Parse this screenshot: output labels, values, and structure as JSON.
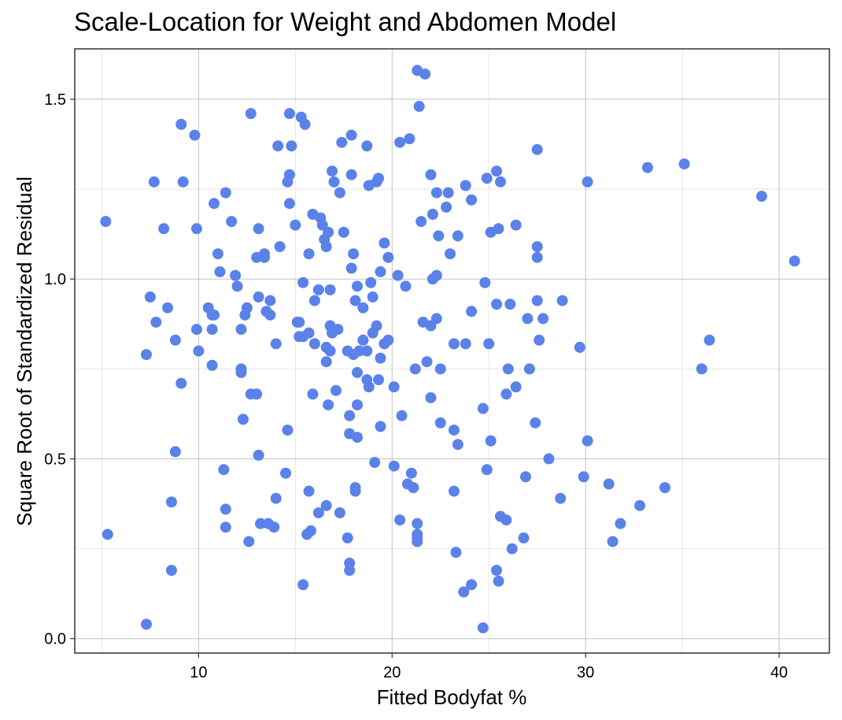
{
  "chart_data": {
    "type": "scatter",
    "title": "Scale-Location for Weight and Abdomen Model",
    "xlabel": "Fitted Bodyfat %",
    "ylabel": "Square Root of Standardized Residual",
    "xlim": [
      3.6,
      42.6
    ],
    "ylim": [
      -0.04,
      1.64
    ],
    "xticks": [
      10,
      20,
      30,
      40
    ],
    "xtick_labels": [
      "10",
      "20",
      "30",
      "40"
    ],
    "yticks": [
      0.0,
      0.5,
      1.0,
      1.5
    ],
    "ytick_labels": [
      "0.0",
      "0.5",
      "1.0",
      "1.5"
    ],
    "grid": true,
    "point_color": "#5b82e8",
    "points": [
      [
        5.2,
        1.16
      ],
      [
        5.3,
        0.29
      ],
      [
        7.3,
        0.04
      ],
      [
        7.3,
        0.79
      ],
      [
        7.5,
        0.95
      ],
      [
        7.7,
        1.27
      ],
      [
        7.8,
        0.88
      ],
      [
        8.2,
        1.14
      ],
      [
        8.4,
        0.92
      ],
      [
        8.6,
        0.38
      ],
      [
        8.6,
        0.19
      ],
      [
        8.8,
        0.52
      ],
      [
        8.8,
        0.83
      ],
      [
        9.1,
        1.43
      ],
      [
        9.2,
        1.27
      ],
      [
        9.1,
        0.71
      ],
      [
        9.8,
        1.4
      ],
      [
        9.9,
        1.14
      ],
      [
        9.9,
        0.86
      ],
      [
        10.0,
        0.8
      ],
      [
        10.5,
        0.92
      ],
      [
        10.7,
        0.9
      ],
      [
        10.8,
        0.9
      ],
      [
        10.7,
        0.86
      ],
      [
        10.7,
        0.76
      ],
      [
        10.8,
        1.21
      ],
      [
        11.0,
        1.07
      ],
      [
        11.1,
        1.02
      ],
      [
        11.4,
        1.24
      ],
      [
        11.3,
        0.47
      ],
      [
        11.4,
        0.36
      ],
      [
        11.4,
        0.31
      ],
      [
        11.7,
        1.16
      ],
      [
        11.9,
        1.01
      ],
      [
        12.0,
        0.98
      ],
      [
        12.2,
        0.86
      ],
      [
        12.2,
        0.75
      ],
      [
        12.2,
        0.74
      ],
      [
        12.3,
        0.61
      ],
      [
        12.4,
        0.9
      ],
      [
        12.5,
        0.92
      ],
      [
        12.6,
        0.27
      ],
      [
        12.7,
        1.46
      ],
      [
        12.7,
        0.68
      ],
      [
        13.0,
        1.06
      ],
      [
        13.0,
        0.68
      ],
      [
        13.1,
        0.95
      ],
      [
        13.1,
        1.14
      ],
      [
        13.1,
        0.51
      ],
      [
        13.2,
        0.32
      ],
      [
        13.4,
        1.06
      ],
      [
        13.4,
        1.07
      ],
      [
        13.5,
        0.91
      ],
      [
        13.6,
        0.32
      ],
      [
        13.7,
        0.94
      ],
      [
        13.7,
        0.9
      ],
      [
        13.9,
        0.31
      ],
      [
        14.0,
        0.39
      ],
      [
        14.0,
        0.82
      ],
      [
        14.1,
        1.37
      ],
      [
        14.2,
        1.09
      ],
      [
        14.5,
        0.46
      ],
      [
        14.6,
        1.27
      ],
      [
        14.6,
        0.58
      ],
      [
        14.7,
        1.29
      ],
      [
        14.7,
        1.21
      ],
      [
        14.7,
        1.46
      ],
      [
        14.8,
        1.37
      ],
      [
        15.0,
        1.15
      ],
      [
        15.1,
        0.88
      ],
      [
        15.2,
        0.88
      ],
      [
        15.2,
        0.84
      ],
      [
        15.3,
        1.45
      ],
      [
        15.4,
        0.15
      ],
      [
        15.4,
        0.84
      ],
      [
        15.4,
        0.99
      ],
      [
        15.5,
        1.43
      ],
      [
        15.6,
        0.29
      ],
      [
        15.7,
        0.85
      ],
      [
        15.7,
        0.41
      ],
      [
        15.7,
        1.07
      ],
      [
        15.8,
        0.3
      ],
      [
        15.9,
        1.18
      ],
      [
        15.9,
        0.68
      ],
      [
        16.0,
        0.94
      ],
      [
        16.0,
        0.82
      ],
      [
        16.2,
        0.35
      ],
      [
        16.2,
        0.97
      ],
      [
        16.3,
        1.17
      ],
      [
        16.4,
        1.15
      ],
      [
        16.5,
        1.11
      ],
      [
        16.6,
        0.81
      ],
      [
        16.6,
        0.37
      ],
      [
        16.6,
        0.77
      ],
      [
        16.6,
        1.09
      ],
      [
        16.7,
        0.65
      ],
      [
        16.7,
        1.13
      ],
      [
        16.8,
        0.97
      ],
      [
        16.8,
        0.8
      ],
      [
        16.8,
        0.87
      ],
      [
        16.9,
        1.3
      ],
      [
        16.9,
        0.86
      ],
      [
        16.9,
        0.85
      ],
      [
        17.0,
        1.27
      ],
      [
        17.1,
        0.69
      ],
      [
        17.2,
        0.86
      ],
      [
        17.3,
        0.35
      ],
      [
        17.3,
        1.24
      ],
      [
        17.4,
        1.38
      ],
      [
        17.5,
        1.13
      ],
      [
        17.7,
        0.28
      ],
      [
        17.7,
        0.8
      ],
      [
        17.8,
        0.62
      ],
      [
        17.8,
        0.57
      ],
      [
        17.8,
        0.21
      ],
      [
        17.8,
        0.19
      ],
      [
        17.9,
        1.4
      ],
      [
        17.9,
        1.03
      ],
      [
        17.9,
        1.29
      ],
      [
        18.0,
        1.07
      ],
      [
        18.0,
        0.79
      ],
      [
        18.1,
        0.94
      ],
      [
        18.1,
        0.41
      ],
      [
        18.1,
        0.42
      ],
      [
        18.2,
        0.98
      ],
      [
        18.2,
        0.74
      ],
      [
        18.2,
        0.65
      ],
      [
        18.2,
        0.56
      ],
      [
        18.3,
        0.8
      ],
      [
        18.5,
        0.92
      ],
      [
        18.5,
        0.83
      ],
      [
        18.7,
        1.37
      ],
      [
        18.7,
        0.72
      ],
      [
        18.7,
        0.8
      ],
      [
        18.8,
        0.7
      ],
      [
        18.8,
        1.26
      ],
      [
        18.9,
        0.99
      ],
      [
        19.0,
        0.85
      ],
      [
        19.0,
        0.95
      ],
      [
        19.1,
        0.49
      ],
      [
        19.2,
        1.27
      ],
      [
        19.2,
        0.87
      ],
      [
        19.3,
        0.72
      ],
      [
        19.3,
        1.28
      ],
      [
        19.4,
        1.02
      ],
      [
        19.4,
        0.78
      ],
      [
        19.4,
        0.59
      ],
      [
        19.6,
        1.1
      ],
      [
        19.6,
        0.82
      ],
      [
        19.8,
        1.06
      ],
      [
        19.8,
        0.83
      ],
      [
        20.1,
        0.7
      ],
      [
        20.1,
        0.48
      ],
      [
        20.3,
        1.01
      ],
      [
        20.4,
        1.38
      ],
      [
        20.4,
        0.33
      ],
      [
        20.5,
        0.62
      ],
      [
        20.7,
        0.98
      ],
      [
        20.8,
        0.43
      ],
      [
        20.9,
        1.39
      ],
      [
        21.0,
        0.46
      ],
      [
        21.1,
        0.42
      ],
      [
        21.2,
        0.75
      ],
      [
        21.3,
        0.32
      ],
      [
        21.3,
        0.29
      ],
      [
        21.3,
        0.28
      ],
      [
        21.3,
        0.27
      ],
      [
        21.3,
        1.58
      ],
      [
        21.4,
        1.48
      ],
      [
        21.5,
        1.16
      ],
      [
        21.6,
        0.88
      ],
      [
        21.7,
        1.57
      ],
      [
        21.8,
        0.77
      ],
      [
        22.0,
        1.29
      ],
      [
        22.0,
        0.87
      ],
      [
        22.0,
        0.67
      ],
      [
        22.1,
        1.18
      ],
      [
        22.1,
        1.0
      ],
      [
        22.3,
        1.24
      ],
      [
        22.3,
        0.89
      ],
      [
        22.3,
        1.01
      ],
      [
        22.4,
        1.12
      ],
      [
        22.5,
        0.75
      ],
      [
        22.5,
        0.6
      ],
      [
        22.8,
        1.2
      ],
      [
        22.9,
        1.24
      ],
      [
        23.0,
        1.07
      ],
      [
        23.2,
        0.82
      ],
      [
        23.2,
        0.58
      ],
      [
        23.2,
        0.41
      ],
      [
        23.3,
        0.24
      ],
      [
        23.4,
        1.12
      ],
      [
        23.4,
        0.54
      ],
      [
        23.7,
        0.13
      ],
      [
        23.8,
        0.82
      ],
      [
        23.8,
        1.26
      ],
      [
        24.1,
        0.15
      ],
      [
        24.1,
        1.22
      ],
      [
        24.1,
        0.91
      ],
      [
        24.7,
        0.64
      ],
      [
        24.7,
        0.03
      ],
      [
        24.8,
        0.99
      ],
      [
        24.9,
        1.28
      ],
      [
        24.9,
        0.47
      ],
      [
        25.0,
        0.82
      ],
      [
        25.1,
        1.13
      ],
      [
        25.1,
        0.55
      ],
      [
        25.4,
        1.3
      ],
      [
        25.4,
        0.93
      ],
      [
        25.4,
        0.19
      ],
      [
        25.5,
        0.16
      ],
      [
        25.5,
        1.14
      ],
      [
        25.6,
        0.34
      ],
      [
        25.6,
        1.27
      ],
      [
        25.9,
        0.33
      ],
      [
        25.9,
        0.68
      ],
      [
        26.0,
        0.75
      ],
      [
        26.1,
        0.93
      ],
      [
        26.2,
        0.25
      ],
      [
        26.4,
        1.15
      ],
      [
        26.4,
        0.7
      ],
      [
        26.8,
        0.28
      ],
      [
        26.9,
        0.45
      ],
      [
        27.0,
        0.89
      ],
      [
        27.1,
        0.75
      ],
      [
        27.4,
        0.6
      ],
      [
        27.5,
        0.94
      ],
      [
        27.5,
        1.36
      ],
      [
        27.5,
        1.09
      ],
      [
        27.5,
        1.06
      ],
      [
        27.6,
        0.83
      ],
      [
        27.8,
        0.89
      ],
      [
        28.1,
        0.5
      ],
      [
        28.7,
        0.39
      ],
      [
        28.8,
        0.94
      ],
      [
        29.7,
        0.81
      ],
      [
        29.9,
        0.45
      ],
      [
        30.1,
        1.27
      ],
      [
        30.1,
        0.55
      ],
      [
        31.2,
        0.43
      ],
      [
        31.4,
        0.27
      ],
      [
        31.8,
        0.32
      ],
      [
        32.8,
        0.37
      ],
      [
        33.2,
        1.31
      ],
      [
        34.1,
        0.42
      ],
      [
        35.1,
        1.32
      ],
      [
        36.0,
        0.75
      ],
      [
        36.4,
        0.83
      ],
      [
        39.1,
        1.23
      ],
      [
        40.8,
        1.05
      ]
    ]
  }
}
